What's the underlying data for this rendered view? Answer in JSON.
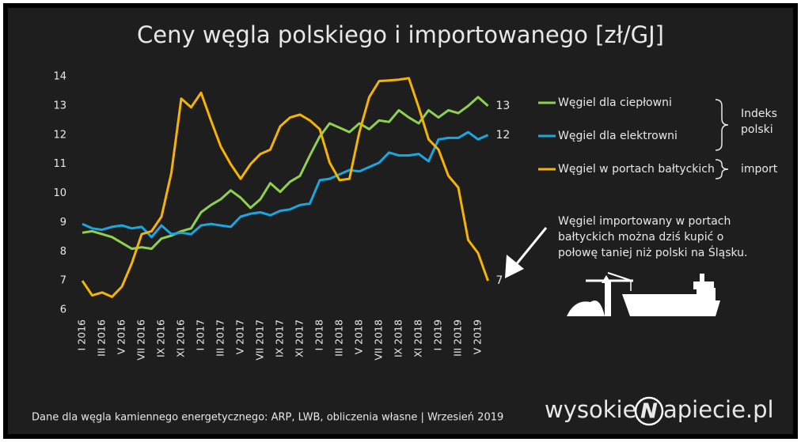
{
  "chart_data": {
    "type": "line",
    "title": "Ceny węgla polskiego i importowanego [zł/GJ]",
    "categories": [
      "I 2016",
      null,
      "III 2016",
      null,
      "V 2016",
      null,
      "VII 2016",
      null,
      "IX 2016",
      null,
      "XI 2016",
      null,
      "I 2017",
      null,
      "III 2017",
      null,
      "V 2017",
      null,
      "VII 2017",
      null,
      "IX 2017",
      null,
      "XI 2017",
      null,
      "I 2018",
      null,
      "III 2018",
      null,
      "V 2018",
      null,
      "VII 2018",
      null,
      "IX 2018",
      null,
      "XI 2018",
      null,
      "I 2019",
      null,
      "III 2019",
      null,
      "V 2019",
      null
    ],
    "series": [
      {
        "name": "Węgiel dla ciepłowni",
        "color": "#8fd14f",
        "values": [
          8.65,
          8.7,
          8.6,
          8.5,
          8.3,
          8.1,
          8.15,
          8.1,
          8.45,
          8.55,
          8.7,
          8.8,
          9.35,
          9.6,
          9.8,
          10.1,
          9.85,
          9.5,
          9.8,
          10.35,
          10.05,
          10.4,
          10.6,
          11.3,
          11.95,
          12.4,
          12.25,
          12.1,
          12.4,
          12.2,
          12.5,
          12.45,
          12.85,
          12.6,
          12.4,
          12.85,
          12.6,
          12.85,
          12.75,
          13.0,
          13.3,
          13
        ]
      },
      {
        "name": "Węgiel dla elektrowni",
        "color": "#1aa7e0",
        "values": [
          8.95,
          8.8,
          8.75,
          8.85,
          8.9,
          8.8,
          8.85,
          8.5,
          8.9,
          8.6,
          8.65,
          8.6,
          8.9,
          8.95,
          8.9,
          8.85,
          9.2,
          9.3,
          9.35,
          9.25,
          9.4,
          9.45,
          9.6,
          9.65,
          10.45,
          10.5,
          10.65,
          10.8,
          10.75,
          10.9,
          11.05,
          11.4,
          11.3,
          11.3,
          11.35,
          11.1,
          11.85,
          11.9,
          11.9,
          12.1,
          11.85,
          12
        ]
      },
      {
        "name": "Węgiel w portach bałtyckich",
        "color": "#f5b400",
        "values": [
          7.0,
          6.5,
          6.6,
          6.45,
          6.8,
          7.6,
          8.6,
          8.7,
          9.2,
          10.7,
          13.25,
          12.95,
          13.45,
          12.5,
          11.6,
          11.0,
          10.5,
          11.0,
          11.35,
          11.5,
          12.3,
          12.6,
          12.7,
          12.5,
          12.2,
          11.05,
          10.45,
          10.5,
          12.1,
          13.3,
          13.85,
          13.87,
          13.9,
          13.95,
          12.95,
          11.85,
          11.5,
          10.6,
          10.2,
          8.4,
          7.95,
          7
        ]
      }
    ],
    "ylim": [
      6,
      14
    ],
    "yticks": [
      6,
      7,
      8,
      9,
      10,
      11,
      12,
      13,
      14
    ],
    "grid": false,
    "legend_groups": [
      {
        "lines": [
          "Indeks",
          "polski"
        ]
      },
      {
        "lines": [
          "import"
        ]
      }
    ],
    "annotation": [
      "Węgiel importowany w portach",
      "bałtyckich można dziś kupić o",
      "połowę taniej niż polski na Śląsku."
    ],
    "source": "Dane dla węgla kamiennego energetycznego: ARP, LWB,  obliczenia własne  |  Wrzesień 2019",
    "logo": [
      "wysokie",
      "N",
      "apiecie.pl"
    ]
  }
}
